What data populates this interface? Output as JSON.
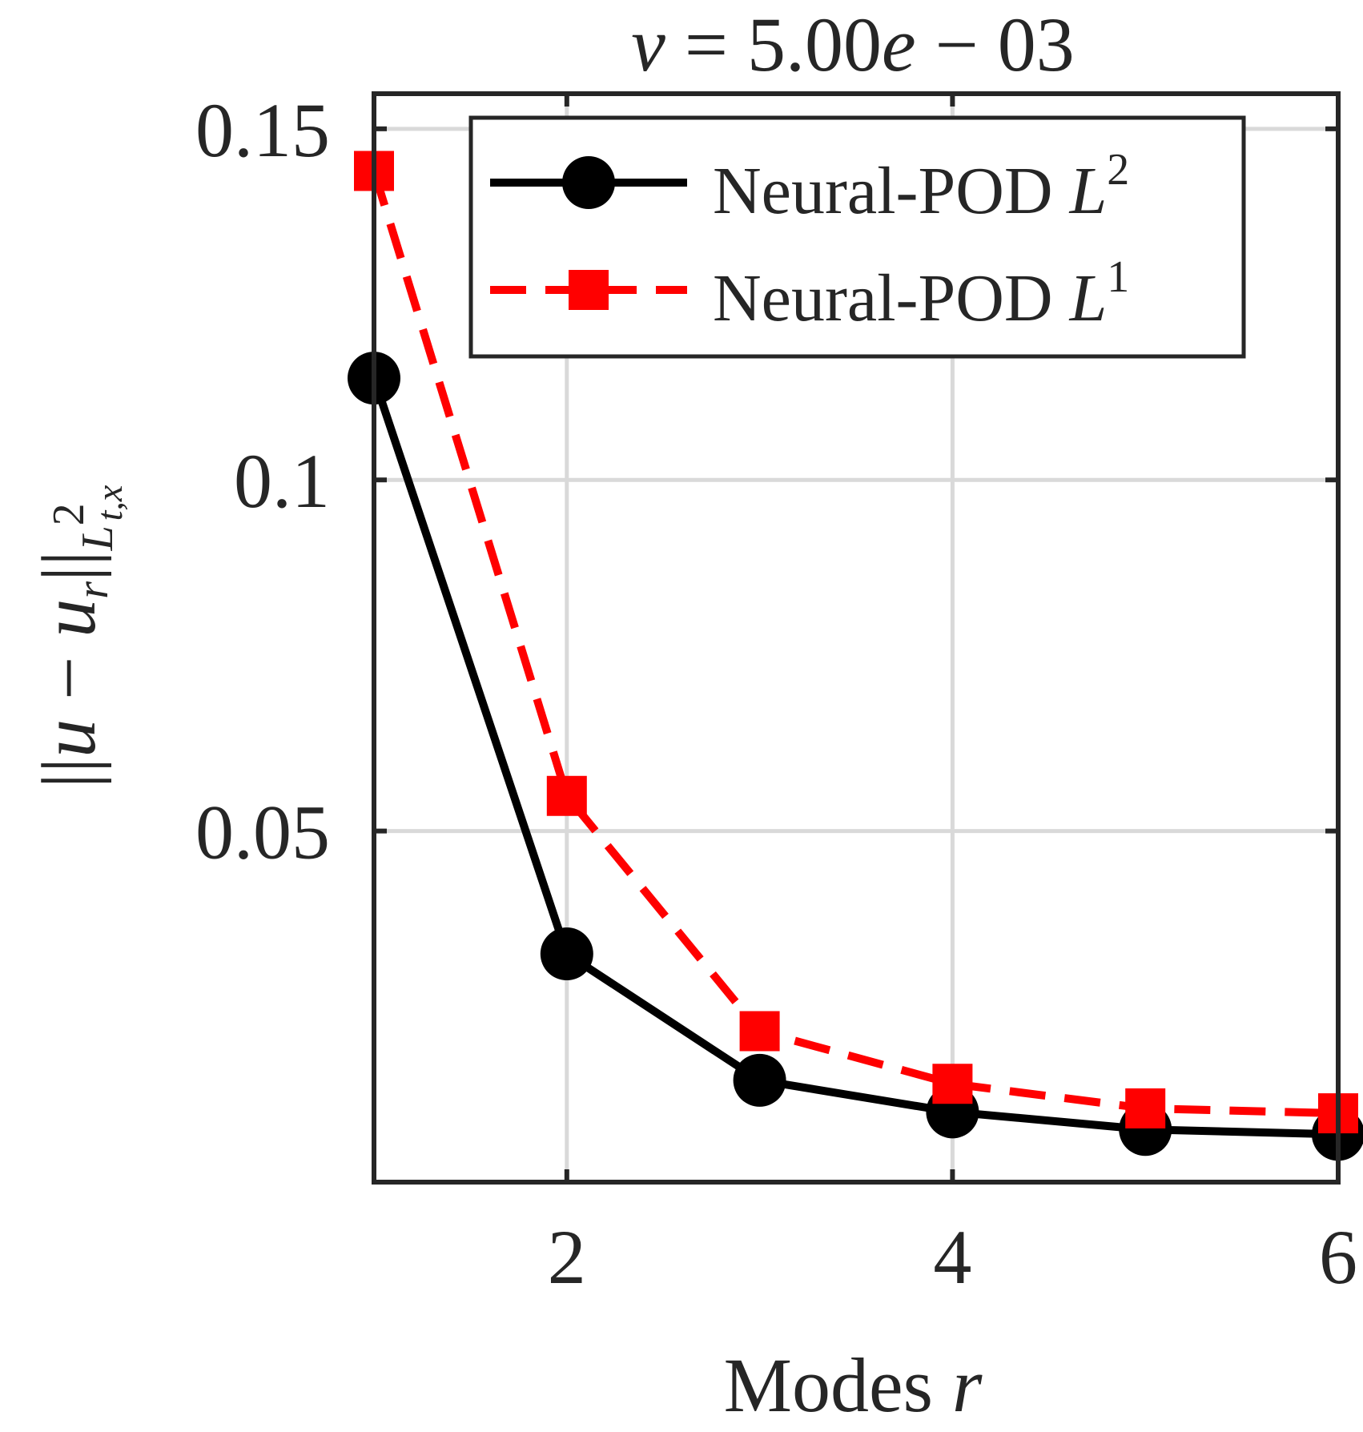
{
  "chart_data": {
    "type": "line",
    "title": {
      "nu": "ν",
      "equals": " = 5.00",
      "e": "e",
      "rest": " − 03"
    },
    "xlabel": {
      "text": "Modes ",
      "var": "r"
    },
    "ylabel": {
      "bars_open": "||",
      "u": "u",
      "minus": " − ",
      "ur": "u",
      "ur_sub": "r",
      "bars_close": "||",
      "L": "L",
      "L_sup": "2",
      "L_sub": "t,x"
    },
    "xlim": [
      1,
      6
    ],
    "ylim": [
      0.0,
      0.155
    ],
    "xticks": [
      2,
      4,
      6
    ],
    "xtick_labels": [
      "2",
      "4",
      "6"
    ],
    "yticks": [
      0.05,
      0.1,
      0.15
    ],
    "ytick_labels": [
      "0.05",
      "0.1",
      "0.15"
    ],
    "grid": true,
    "legend_position": "top-right",
    "x": [
      1,
      2,
      3,
      4,
      5,
      6
    ],
    "series": [
      {
        "name": "Neural-POD L2",
        "label": "Neural-POD ",
        "math": "L",
        "sup": "2",
        "color": "#000000",
        "line_style": "solid",
        "marker": "circle",
        "values": [
          0.1145,
          0.0325,
          0.0145,
          0.01,
          0.0075,
          0.0068
        ]
      },
      {
        "name": "Neural-POD L1",
        "label": "Neural-POD ",
        "math": "L",
        "sup": "1",
        "color": "#ff0000",
        "line_style": "dashed",
        "marker": "square",
        "values": [
          0.144,
          0.055,
          0.0215,
          0.014,
          0.0105,
          0.0098
        ]
      }
    ]
  }
}
